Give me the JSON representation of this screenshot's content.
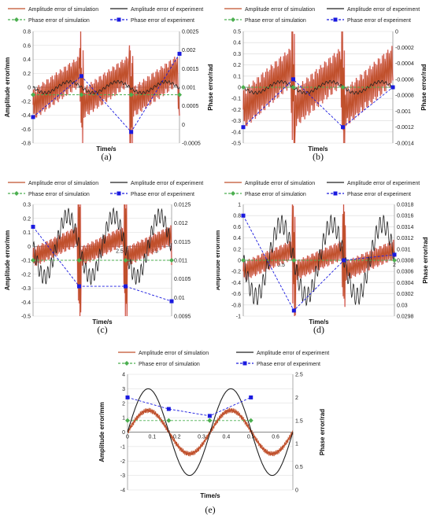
{
  "colors": {
    "sim_amp": "#c0502c",
    "sim_fill": "#ff6699",
    "exp_amp": "#222222",
    "sim_phase": "#4caf50",
    "exp_phase": "#1a1adf",
    "grid": "#d9d9d9"
  },
  "chart_data": [
    {
      "type": "line",
      "label": "(a)",
      "legend": [
        "Amplitude error of simulation",
        "Amplitude error of experiment",
        "Phase error of simulation",
        "Phase error of experiment"
      ],
      "xlabel": "Time/s",
      "ylabel": "Amplitude error/mm",
      "y2label": "Phase error/rad",
      "xlim": [
        0,
        1
      ],
      "ylim": [
        -0.8,
        0.8
      ],
      "yticks": [
        "0.8",
        "0.6",
        "0.4",
        "0.2",
        "0",
        "-0.2",
        "-0.4",
        "-0.6",
        "-0.8"
      ],
      "y2lim": [
        -0.0005,
        0.0025
      ],
      "y2ticks": [
        "0.0025",
        "0.002",
        "0.0015",
        "0.001",
        "0.0005",
        "0",
        "-0.0005"
      ],
      "xticks": [],
      "series": [
        {
          "name": "Amplitude error of simulation",
          "kind": "sim_amp",
          "amp": 0.25,
          "period": 0.33,
          "spikes": [
            0.33,
            0.67
          ],
          "spike": 0.55
        },
        {
          "name": "Amplitude error of experiment",
          "kind": "exp_amp",
          "amp": 0.08,
          "period": 0.33
        },
        {
          "name": "Phase error of simulation",
          "kind": "sim_phase",
          "x": [
            0,
            0.33,
            0.67,
            1
          ],
          "y": [
            0.0008,
            0.0008,
            0.0008,
            0.0008
          ]
        },
        {
          "name": "Phase error of experiment",
          "kind": "exp_phase",
          "x": [
            0.0,
            0.33,
            0.67,
            1.0
          ],
          "y": [
            0.0002,
            0.0013,
            -0.0002,
            0.0019
          ]
        }
      ]
    },
    {
      "type": "line",
      "label": "(b)",
      "legend": [
        "Amplitude error of simulation",
        "Amplitude error of experiment",
        "Phase error of simulation",
        "Phase error of experiment"
      ],
      "xlabel": "Time/s",
      "ylabel": "",
      "y2label": "Phase error/rad",
      "xlim": [
        0,
        5
      ],
      "ylim": [
        -0.5,
        0.5
      ],
      "yticks": [
        "0.5",
        "0.4",
        "0.3",
        "0.2",
        "0.1",
        "0",
        "-0.1",
        "-0.2",
        "-0.3",
        "-0.4",
        "-0.5"
      ],
      "y2lim": [
        -0.0014,
        0
      ],
      "y2ticks": [
        "0",
        "-0.0002",
        "-0.0004",
        "-0.0006",
        "-0.0008",
        "-0.001",
        "-0.0012",
        "-0.0014"
      ],
      "xticks": [
        "4"
      ],
      "series": [
        {
          "name": "Amplitude error of simulation",
          "kind": "sim_amp",
          "amp": 0.2,
          "period": 1.67,
          "spikes": [
            1.67,
            3.33
          ],
          "spike": 0.5
        },
        {
          "name": "Amplitude error of experiment",
          "kind": "exp_amp",
          "amp": 0.05,
          "period": 1.67
        },
        {
          "name": "Phase error of simulation",
          "kind": "sim_phase",
          "x": [
            0,
            1.67,
            3.33,
            5
          ],
          "y": [
            -0.0007,
            -0.0007,
            -0.0007,
            -0.0007
          ]
        },
        {
          "name": "Phase error of experiment",
          "kind": "exp_phase",
          "x": [
            0.0,
            1.67,
            3.33,
            5.0
          ],
          "y": [
            -0.0012,
            -0.0006,
            -0.0012,
            -0.0007
          ]
        }
      ]
    },
    {
      "type": "line",
      "label": "(c)",
      "legend": [
        "Amplitude error of simulation",
        "Amplitude error of experiment",
        "Phase error of simulation",
        "Phase error of experiment"
      ],
      "xlabel": "Time/s",
      "ylabel": "Amplitude error/mm",
      "y2label": "",
      "xlim": [
        0,
        4
      ],
      "ylim": [
        -0.5,
        0.3
      ],
      "yticks": [
        "0.3",
        "0.2",
        "0.1",
        "0",
        "-0.1",
        "-0.2",
        "-0.3",
        "-0.4",
        "-0.5"
      ],
      "y2lim": [
        0.0095,
        0.0125
      ],
      "y2ticks": [
        "0.0125",
        "0.012",
        "0.0115",
        "0.011",
        "0.0105",
        "0.01",
        "0.0095"
      ],
      "xticks": [
        "0.5",
        "1.5",
        "2.5",
        "3.5"
      ],
      "series": [
        {
          "name": "Amplitude error of simulation",
          "kind": "sim_amp",
          "amp": 0.08,
          "period": 1.33,
          "spikes": [
            1.33,
            2.67
          ],
          "spike": 0.4
        },
        {
          "name": "Amplitude error of experiment",
          "kind": "exp_amp",
          "amp": 0.22,
          "period": 1.33
        },
        {
          "name": "Phase error of simulation",
          "kind": "sim_phase",
          "x": [
            0,
            1.33,
            2.67,
            4
          ],
          "y": [
            0.011,
            0.011,
            0.011,
            0.011
          ]
        },
        {
          "name": "Phase error of experiment",
          "kind": "exp_phase",
          "x": [
            0.0,
            1.33,
            2.67,
            4.0
          ],
          "y": [
            0.0119,
            0.0103,
            0.0103,
            0.0099
          ]
        }
      ]
    },
    {
      "type": "line",
      "label": "(d)",
      "legend": [
        "Amplitude error of simulation",
        "Amplitude error of experiment",
        "Phase error of simulation",
        "Phase error of experiment"
      ],
      "xlabel": "Time/s",
      "ylabel": "Amplitude error/mm",
      "y2label": "Phase error/rad",
      "xlim": [
        0,
        2
      ],
      "ylim": [
        -1,
        1
      ],
      "yticks": [
        "1",
        "0.8",
        "0.6",
        "0.4",
        "0.2",
        "0",
        "-0.2",
        "-0.4",
        "-0.6",
        "-0.8",
        "-1"
      ],
      "y2lim": [
        0.0298,
        0.0318
      ],
      "y2ticks": [
        "0.0318",
        "0.0316",
        "0.0314",
        "0.0312",
        "0.031",
        "0.0308",
        "0.0306",
        "0.0304",
        "0.0302",
        "0.03",
        "0.0298"
      ],
      "xticks": [
        "0.5",
        "1",
        "1.5",
        "2"
      ],
      "series": [
        {
          "name": "Amplitude error of simulation",
          "kind": "sim_amp",
          "amp": 0.2,
          "period": 0.67,
          "spikes": [
            0.67,
            1.33
          ],
          "spike": 0.8
        },
        {
          "name": "Amplitude error of experiment",
          "kind": "exp_amp",
          "amp": 0.65,
          "period": 0.67
        },
        {
          "name": "Phase error of simulation",
          "kind": "sim_phase",
          "x": [
            0,
            0.67,
            1.33,
            2
          ],
          "y": [
            0.0308,
            0.0308,
            0.0308,
            0.0308
          ]
        },
        {
          "name": "Phase error of experiment",
          "kind": "exp_phase",
          "x": [
            0.0,
            0.67,
            1.33,
            2.0
          ],
          "y": [
            0.0316,
            0.0299,
            0.0308,
            0.0309
          ]
        }
      ]
    },
    {
      "type": "line",
      "label": "(e)",
      "legend": [
        "Amplitude error of simulation",
        "Amplitude error of experiment",
        "Phase error of simulation",
        "Phase error of experiment"
      ],
      "xlabel": "Time/s",
      "ylabel": "Amplitude error/mm",
      "y2label": "Phase error/rad",
      "xlim": [
        0,
        0.67
      ],
      "ylim": [
        -4,
        4
      ],
      "yticks": [
        "4",
        "3",
        "2",
        "1",
        "0",
        "-1",
        "-2",
        "-3",
        "-4"
      ],
      "y2lim": [
        0,
        2.5
      ],
      "y2ticks": [
        "2.5",
        "2",
        "1.5",
        "1",
        "0.5",
        "0"
      ],
      "xticks": [
        "0",
        "0.1",
        "0.2",
        "0.3",
        "0.4",
        "0.5",
        "0.6"
      ],
      "series": [
        {
          "name": "Amplitude error of simulation",
          "kind": "sim_amp_sine",
          "amp": 1.5,
          "period": 0.335
        },
        {
          "name": "Amplitude error of experiment",
          "kind": "exp_amp_sine",
          "amp": 3.0,
          "period": 0.335
        },
        {
          "name": "Phase error of simulation",
          "kind": "sim_phase",
          "x": [
            0,
            0.167,
            0.333,
            0.5
          ],
          "y": [
            1.5,
            1.5,
            1.5,
            1.5
          ]
        },
        {
          "name": "Phase error of experiment",
          "kind": "exp_phase",
          "x": [
            0,
            0.167,
            0.333,
            0.5
          ],
          "y": [
            2.0,
            1.75,
            1.6,
            2.0
          ]
        }
      ]
    }
  ]
}
